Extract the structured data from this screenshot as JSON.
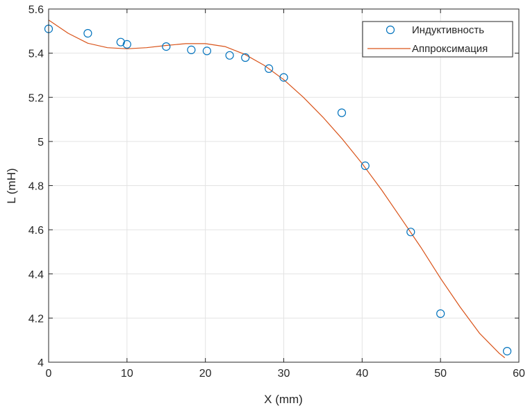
{
  "chart_data": {
    "type": "scatter",
    "title": "",
    "xlabel": "X (mm)",
    "ylabel": "L (mH)",
    "xlim": [
      0,
      60
    ],
    "ylim": [
      4,
      5.6
    ],
    "xticks": [
      0,
      10,
      20,
      30,
      40,
      50,
      60
    ],
    "yticks": [
      4,
      4.2,
      4.4,
      4.6,
      4.8,
      5,
      5.2,
      5.4,
      5.6
    ],
    "ytick_labels": [
      "4",
      "4.2",
      "4.4",
      "4.6",
      "4.8",
      "5",
      "5.2",
      "5.4",
      "5.6"
    ],
    "grid": true,
    "legend_position": "top-right",
    "series": [
      {
        "name": "Индуктивность",
        "kind": "markers",
        "marker": "circle-open",
        "color": "#0072BD",
        "x": [
          0,
          5,
          9.2,
          10,
          15,
          18.2,
          20.2,
          23.1,
          25.1,
          28.1,
          30,
          37.4,
          40.4,
          46.2,
          50,
          58.5
        ],
        "y": [
          5.51,
          5.49,
          5.45,
          5.44,
          5.43,
          5.415,
          5.41,
          5.39,
          5.38,
          5.33,
          5.29,
          5.13,
          4.89,
          4.59,
          4.22,
          4.05
        ]
      },
      {
        "name": "Аппроксимация",
        "kind": "line",
        "color": "#D95319",
        "x": [
          0,
          2.5,
          5,
          7.5,
          10,
          12.5,
          15,
          17.5,
          20,
          22.5,
          25,
          27.5,
          30,
          32.5,
          35,
          37.5,
          40,
          42.5,
          45,
          47.5,
          50,
          52.5,
          55,
          57.5,
          58.2
        ],
        "y": [
          5.55,
          5.49,
          5.445,
          5.425,
          5.42,
          5.425,
          5.435,
          5.443,
          5.443,
          5.43,
          5.395,
          5.345,
          5.28,
          5.2,
          5.11,
          5.01,
          4.9,
          4.78,
          4.65,
          4.52,
          4.38,
          4.25,
          4.13,
          4.04,
          4.02
        ]
      }
    ]
  }
}
